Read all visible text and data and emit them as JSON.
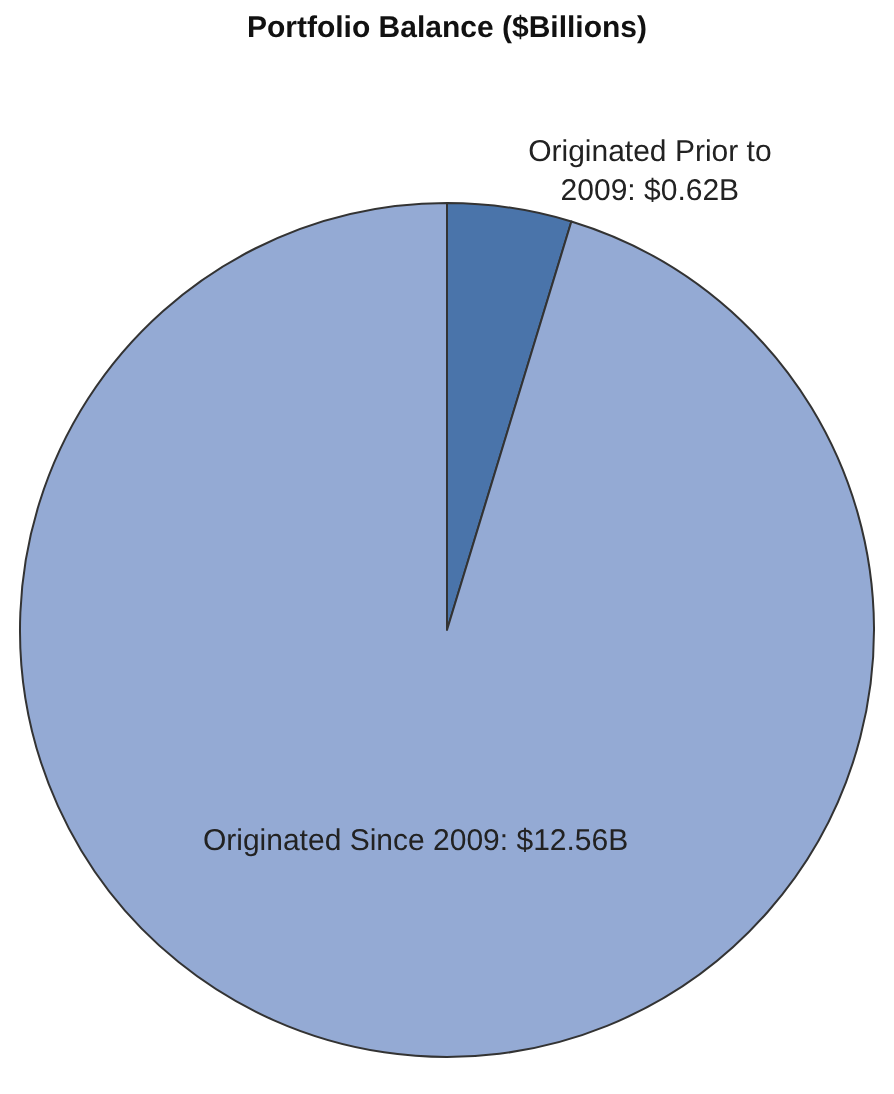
{
  "chart_data": {
    "type": "pie",
    "title": "Portfolio Balance ($Billions)",
    "categories": [
      "Originated Prior to 2009",
      "Originated Since 2009"
    ],
    "values": [
      0.62,
      12.56
    ],
    "value_labels": [
      "$0.62B",
      "$12.56B"
    ],
    "colors": [
      "#4a74aa",
      "#94aad4"
    ],
    "legend": false
  }
}
